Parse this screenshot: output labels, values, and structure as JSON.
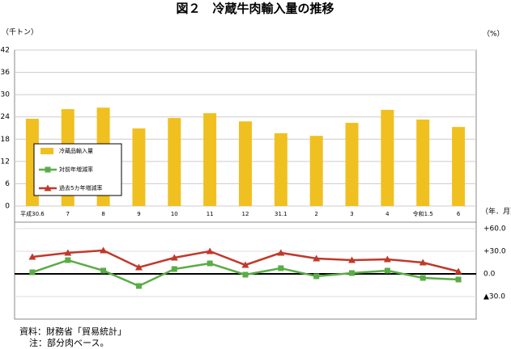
{
  "chart_data": [
    {
      "type": "bar",
      "title": "図２　冷蔵牛肉輸入量の推移",
      "y_label": "（千トン）",
      "x_label": "（年．月）",
      "categories": [
        "平成30.6",
        "7",
        "8",
        "9",
        "10",
        "11",
        "12",
        "31.1",
        "2",
        "3",
        "4",
        "令和1.5",
        "6"
      ],
      "series": [
        {
          "name": "冷蔵品輸入量",
          "color": "#f0c020",
          "values": [
            23.5,
            26.1,
            26.5,
            20.9,
            23.7,
            25.0,
            22.8,
            19.6,
            18.9,
            22.4,
            25.9,
            23.3,
            21.3
          ]
        }
      ],
      "ylim": [
        0,
        42
      ],
      "yticks": [
        0,
        6,
        12,
        18,
        24,
        30,
        36,
        42
      ],
      "grid": true
    },
    {
      "type": "line",
      "y_label": "（%）",
      "series": [
        {
          "name": "対前年増減率",
          "color": "#5aac46",
          "marker": "square",
          "values": [
            2.1,
            18.2,
            4.3,
            -16.1,
            6.4,
            13.9,
            -1.1,
            7.5,
            -3.2,
            1.1,
            4.3,
            -5.4,
            -7.5
          ]
        },
        {
          "name": "過去5カ年増減率",
          "color": "#c0392b",
          "marker": "triangle",
          "values": [
            22.5,
            27.9,
            31.1,
            8.6,
            21.4,
            30.0,
            11.8,
            27.9,
            20.4,
            18.2,
            19.3,
            15.0,
            3.2
          ]
        }
      ],
      "ylim": [
        -60,
        75
      ],
      "yticks": [
        {
          "value": -30,
          "label": "▲30.0"
        },
        {
          "value": 0,
          "label": "0.0"
        },
        {
          "value": 30,
          "label": "+30.0"
        },
        {
          "value": 60,
          "label": "+60.0"
        }
      ],
      "grid": true
    }
  ],
  "notes": [
    "資料：財務省「貿易統計」",
    "注：部分肉ベース。"
  ]
}
